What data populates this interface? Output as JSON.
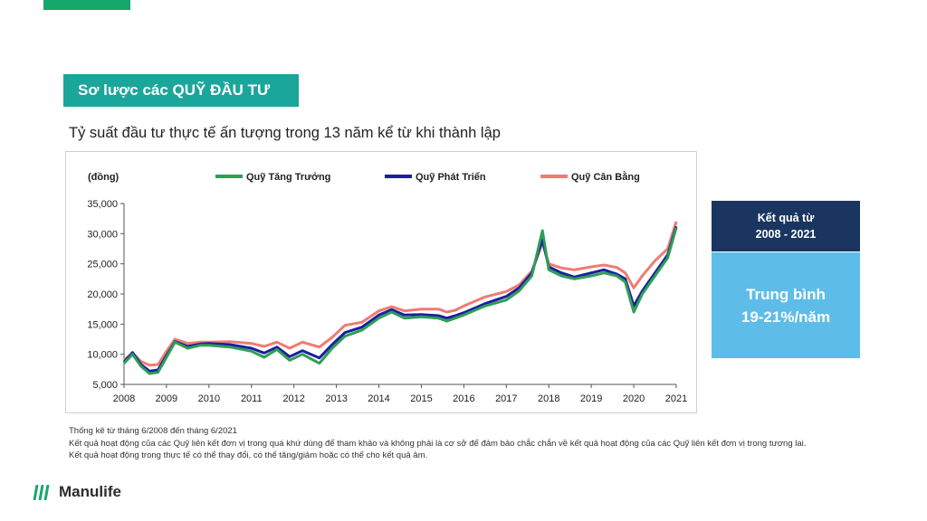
{
  "header": {
    "title": "Sơ lược các QUỸ ĐẦU TƯ",
    "subtitle": "Tỷ suất đầu tư thực tế ấn tượng trong 13 năm kể từ khi thành lập"
  },
  "chart_data": {
    "type": "line",
    "title": "",
    "ylabel": "(đồng)",
    "xlabel": "",
    "xlim": [
      2008,
      2021
    ],
    "ylim": [
      5000,
      35000
    ],
    "x_ticks": [
      "2008",
      "2009",
      "2010",
      "2011",
      "2012",
      "2013",
      "2014",
      "2015",
      "2016",
      "2017",
      "2018",
      "2019",
      "2020",
      "2021"
    ],
    "y_ticks": [
      "5,000",
      "10,000",
      "15,000",
      "20,000",
      "25,000",
      "30,000",
      "35,000"
    ],
    "legend_position": "top",
    "grid": false,
    "x": [
      2008.0,
      2008.2,
      2008.4,
      2008.6,
      2008.8,
      2009.0,
      2009.2,
      2009.5,
      2009.8,
      2010.0,
      2010.5,
      2011.0,
      2011.3,
      2011.6,
      2011.9,
      2012.2,
      2012.6,
      2012.9,
      2013.2,
      2013.6,
      2014.0,
      2014.3,
      2014.6,
      2015.0,
      2015.4,
      2015.6,
      2015.8,
      2016.0,
      2016.5,
      2017.0,
      2017.3,
      2017.6,
      2017.85,
      2018.0,
      2018.3,
      2018.6,
      2019.0,
      2019.3,
      2019.6,
      2019.8,
      2020.0,
      2020.2,
      2020.5,
      2020.8,
      2021.0
    ],
    "series": [
      {
        "name": "Quỹ Tăng Trưởng",
        "color": "#2e9e55",
        "values": [
          8500,
          10000,
          8000,
          6800,
          7000,
          9500,
          12000,
          11000,
          11500,
          11500,
          11200,
          10500,
          9500,
          10800,
          9000,
          10000,
          8500,
          11000,
          13000,
          14000,
          16000,
          17000,
          16000,
          16200,
          16000,
          15500,
          16000,
          16500,
          18000,
          19000,
          20500,
          23000,
          30500,
          24000,
          23000,
          22500,
          23000,
          23500,
          23000,
          22000,
          17000,
          20000,
          23000,
          26000,
          31000
        ]
      },
      {
        "name": "Quỹ Phát Triển",
        "color": "#1a1f9e",
        "values": [
          8700,
          10300,
          8300,
          7200,
          7400,
          9800,
          12100,
          11300,
          11700,
          11800,
          11600,
          11000,
          10200,
          11200,
          9600,
          10600,
          9400,
          11600,
          13600,
          14500,
          16500,
          17400,
          16500,
          16600,
          16400,
          16000,
          16400,
          16900,
          18400,
          19600,
          21000,
          23500,
          29000,
          24500,
          23500,
          22800,
          23500,
          24000,
          23300,
          22500,
          18000,
          20500,
          23500,
          26500,
          31200
        ]
      },
      {
        "name": "Quỹ Cân Bằng",
        "color": "#ef7c72",
        "values": [
          9000,
          10200,
          8800,
          8200,
          8300,
          10500,
          12500,
          11800,
          12000,
          12000,
          12100,
          11800,
          11300,
          12000,
          11000,
          12000,
          11200,
          12800,
          14800,
          15300,
          17200,
          17900,
          17200,
          17500,
          17500,
          17000,
          17300,
          18000,
          19500,
          20400,
          21500,
          23800,
          28500,
          25000,
          24300,
          24000,
          24500,
          24800,
          24400,
          23500,
          21000,
          23000,
          25500,
          27500,
          32000
        ]
      }
    ]
  },
  "result_box": {
    "heading_line1": "Kết quả từ",
    "heading_line2": "2008 - 2021",
    "body_line1": "Trung bình",
    "body_line2": "19-21%/năm"
  },
  "notes": {
    "line1": "Thống kê từ tháng 6/2008  đến tháng 6/2021",
    "line2": "Kết quả hoạt động của các Quỹ liên kết đơn vị trong quá khứ dùng để tham khảo và không phải là cơ sở để đảm bảo chắc chắn về kết quả hoạt động của các Quỹ liên kết đơn vị trong tương lai.",
    "line3": "Kết quả hoạt động trong thực tế có thể thay đổi, có thể tăng/giảm hoặc có thể cho kết quả âm."
  },
  "footer": {
    "brand": "Manulife",
    "brand_color": "#16a86b"
  }
}
